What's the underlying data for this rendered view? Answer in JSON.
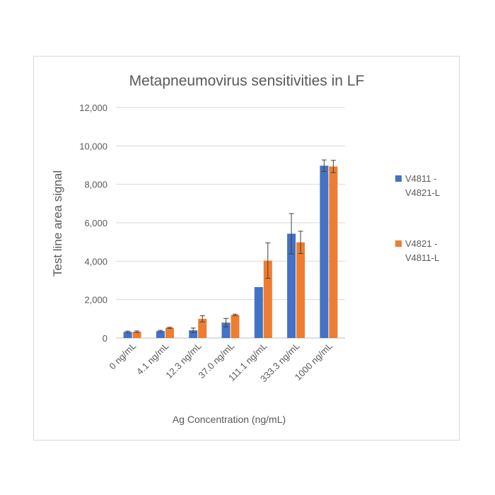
{
  "chart_data": {
    "type": "bar",
    "title": "Metapneumovirus sensitivities in LF",
    "xlabel": "Ag Concentration (ng/mL)",
    "ylabel": "Test line area signal",
    "ylim": [
      0,
      12000
    ],
    "yticks": [
      0,
      2000,
      4000,
      6000,
      8000,
      10000,
      12000
    ],
    "ytick_labels": [
      "0",
      "2,000",
      "4,000",
      "6,000",
      "8,000",
      "10,000",
      "12,000"
    ],
    "grid": true,
    "legend_position": "right",
    "categories": [
      "0 ng/mL",
      "4.1 ng/mL",
      "12.3 ng/mL",
      "37.0 ng/mL",
      "111.1 ng/mL",
      "333.3 ng/mL",
      "1000 ng/mL"
    ],
    "series": [
      {
        "name_line1": "V4811 -",
        "name_line2": "V4821-L",
        "color": "#4472c4",
        "values": [
          320,
          360,
          400,
          800,
          2650,
          5430,
          8970
        ],
        "errors": [
          40,
          40,
          120,
          220,
          0,
          1050,
          300
        ]
      },
      {
        "name_line1": "V4821 -",
        "name_line2": "V4811-L",
        "color": "#ed7d31",
        "values": [
          330,
          530,
          1000,
          1200,
          4030,
          4980,
          8930
        ],
        "errors": [
          40,
          30,
          160,
          40,
          920,
          580,
          320
        ]
      }
    ]
  }
}
